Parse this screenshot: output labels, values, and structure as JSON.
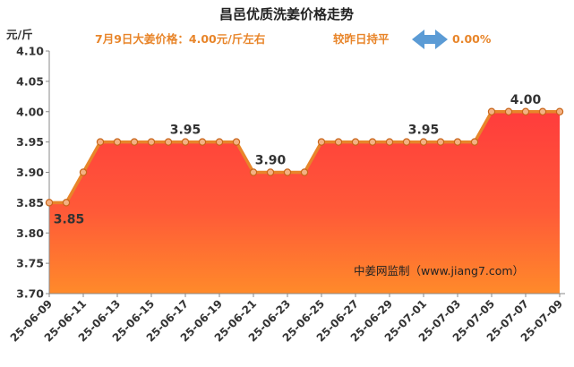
{
  "chart_data": {
    "type": "area",
    "title": "昌邑优质洗姜价格走势",
    "subtitle": "7月9日大姜价格：4.00元/斤左右",
    "comparison_label": "较昨日持平",
    "change_percent": "0.00%",
    "ylabel": "元/斤",
    "ylim": [
      3.7,
      4.1
    ],
    "yticks": [
      "3.70",
      "3.75",
      "3.80",
      "3.85",
      "3.90",
      "3.95",
      "4.00",
      "4.05",
      "4.10"
    ],
    "x": [
      "25-06-09",
      "25-06-10",
      "25-06-11",
      "25-06-12",
      "25-06-13",
      "25-06-14",
      "25-06-15",
      "25-06-16",
      "25-06-17",
      "25-06-18",
      "25-06-19",
      "25-06-20",
      "25-06-21",
      "25-06-22",
      "25-06-23",
      "25-06-24",
      "25-06-25",
      "25-06-26",
      "25-06-27",
      "25-06-28",
      "25-06-29",
      "25-06-30",
      "25-07-01",
      "25-07-02",
      "25-07-03",
      "25-07-04",
      "25-07-05",
      "25-07-06",
      "25-07-07",
      "25-07-08",
      "25-07-09"
    ],
    "xtick_labels": [
      "25-06-09",
      "25-06-11",
      "25-06-13",
      "25-06-15",
      "25-06-17",
      "25-06-19",
      "25-06-21",
      "25-06-23",
      "25-06-25",
      "25-06-27",
      "25-06-29",
      "25-07-01",
      "25-07-03",
      "25-07-05",
      "25-07-07",
      "25-07-09"
    ],
    "values": [
      3.85,
      3.85,
      3.9,
      3.95,
      3.95,
      3.95,
      3.95,
      3.95,
      3.95,
      3.95,
      3.95,
      3.95,
      3.9,
      3.9,
      3.9,
      3.9,
      3.95,
      3.95,
      3.95,
      3.95,
      3.95,
      3.95,
      3.95,
      3.95,
      3.95,
      3.95,
      4.0,
      4.0,
      4.0,
      4.0,
      4.0
    ],
    "data_labels": [
      {
        "x": "25-06-09",
        "text": "3.85"
      },
      {
        "x": "25-06-17",
        "text": "3.95"
      },
      {
        "x": "25-06-22",
        "text": "3.90"
      },
      {
        "x": "25-07-01",
        "text": "3.95"
      },
      {
        "x": "25-07-07",
        "text": "4.00"
      }
    ],
    "grid": false,
    "watermark": "中姜网监制（www.jiang7.com）",
    "colors": {
      "line": "#e8852a",
      "marker_fill": "#f4b183",
      "area_top": "#ff3c3c",
      "area_bottom": "#ff8a2a",
      "arrow": "#5b9bd5",
      "subtitle": "#e8852a"
    }
  }
}
